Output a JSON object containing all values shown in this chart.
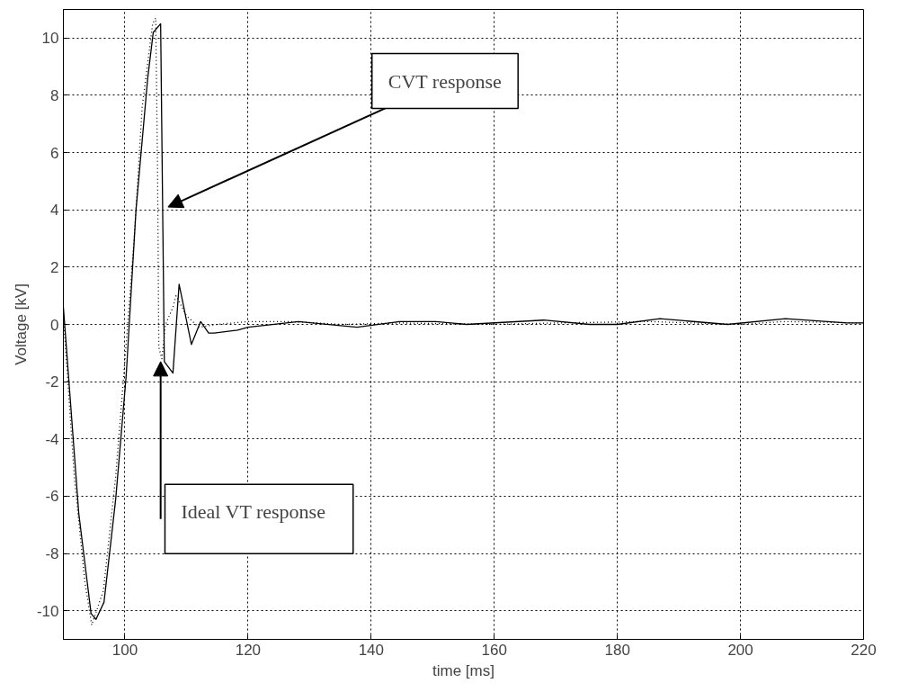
{
  "chart_data": {
    "type": "line",
    "xlabel": "time [ms]",
    "ylabel": "Voltage [kV]",
    "xlim": [
      90,
      220
    ],
    "ylim": [
      -11,
      11
    ],
    "xticks": [
      100,
      120,
      140,
      160,
      180,
      200,
      220
    ],
    "yticks": [
      -10,
      -8,
      -6,
      -4,
      -2,
      0,
      2,
      4,
      6,
      8,
      10
    ],
    "grid": true,
    "marker": "none",
    "series": [
      {
        "color": "#000000",
        "line_style": "solid",
        "x": [
          90,
          92.5,
          94.5,
          95.3,
          96.6,
          98.5,
          100.2,
          101.8,
          103.7,
          104.6,
          105.8,
          106.4,
          107.8,
          108.8,
          110.8,
          112.3,
          113.6,
          114.5,
          118.3,
          120,
          128.2,
          137.7,
          144.6,
          150.5,
          155.5,
          168,
          175.5,
          180,
          186.9,
          197.9,
          207.3,
          217.3,
          220
        ],
        "values": [
          0.6,
          -6.6,
          -10.1,
          -10.3,
          -9.7,
          -6.1,
          -1.8,
          4.0,
          8.6,
          10.2,
          10.5,
          -1.3,
          -1.7,
          1.4,
          -0.7,
          0.1,
          -0.3,
          -0.3,
          -0.2,
          -0.1,
          0.1,
          -0.1,
          0.1,
          0.1,
          0,
          0.15,
          0,
          0,
          0.2,
          0,
          0.2,
          0.05,
          0.05
        ]
      },
      {
        "color": "#000000",
        "line_style": "dotted",
        "x": [
          90,
          91.8,
          93.5,
          94.6,
          96.5,
          98.5,
          99.8,
          101.5,
          102.8,
          104.5,
          105,
          105.3,
          105.5,
          106,
          106.6,
          107.8,
          108.3,
          110,
          112,
          115,
          120,
          127,
          135,
          145,
          160,
          170,
          185,
          200,
          207,
          220
        ],
        "values": [
          0.3,
          -5.4,
          -9.0,
          -10.5,
          -9.3,
          -5.3,
          -1.8,
          3.0,
          7.6,
          10.5,
          10.7,
          5.4,
          -0.8,
          -1.2,
          0,
          0.6,
          1.0,
          0.3,
          -0.1,
          0,
          0.1,
          0.1,
          0,
          0.05,
          0,
          0.05,
          0.1,
          0,
          0.1,
          0.05
        ]
      }
    ],
    "annotations": [
      {
        "text": "CVT response",
        "x": 107,
        "y": 4.1
      },
      {
        "text": "Ideal VT response",
        "x": 105.8,
        "y": -1.3
      }
    ]
  }
}
